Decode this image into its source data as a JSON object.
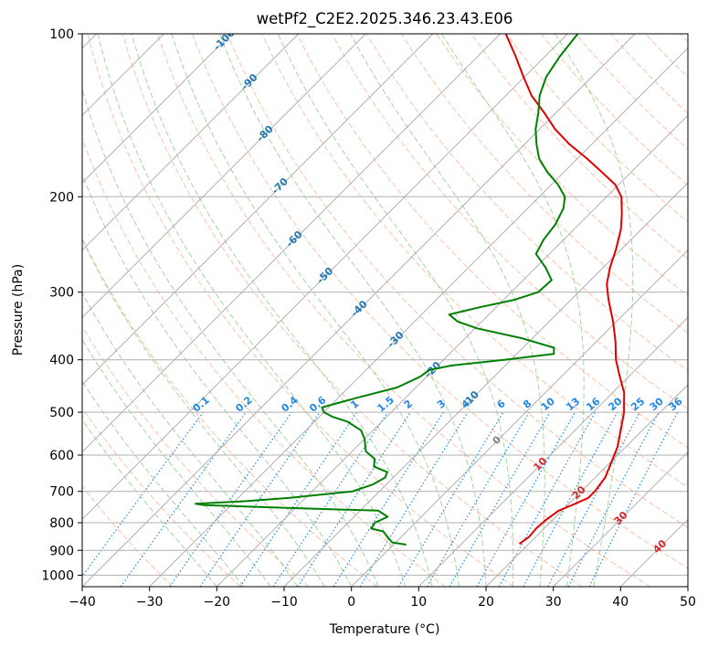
{
  "chart_data": {
    "type": "line",
    "title": "wetPf2_C2E2.2025.346.23.43.E06",
    "xlabel": "Temperature (°C)",
    "ylabel": "Pressure (hPa)",
    "xlim": [
      -40,
      50
    ],
    "ylim": [
      1050,
      100
    ],
    "y_scale": "log",
    "grid": true,
    "x_ticks": [
      -40,
      -30,
      -20,
      -10,
      0,
      10,
      20,
      30,
      40,
      50
    ],
    "y_ticks": [
      100,
      200,
      300,
      400,
      500,
      600,
      700,
      800,
      900,
      1000
    ],
    "colors": {
      "temperature": "#e00000",
      "dewpoint": "#008000",
      "isotherm": "#b0b0b0",
      "dry_adiabat": "#ffb090",
      "moist_adiabat": "#90c890",
      "mixing_ratio": "#1e88e5",
      "isotherm_label_cold": "#1f77b4",
      "isotherm_label_warm": "#d62728",
      "isotherm_label_zero": "#808080"
    },
    "series": [
      {
        "key": "temperature",
        "points": [
          [
            875,
            18.6
          ],
          [
            850,
            19.0
          ],
          [
            820,
            18.8
          ],
          [
            790,
            19.0
          ],
          [
            760,
            19.5
          ],
          [
            740,
            20.8
          ],
          [
            720,
            22.0
          ],
          [
            700,
            22.0
          ],
          [
            660,
            21.5
          ],
          [
            620,
            20.2
          ],
          [
            580,
            18.8
          ],
          [
            540,
            16.8
          ],
          [
            500,
            14.6
          ],
          [
            460,
            11.7
          ],
          [
            430,
            8.7
          ],
          [
            400,
            5.6
          ],
          [
            370,
            2.8
          ],
          [
            340,
            -0.5
          ],
          [
            310,
            -4.4
          ],
          [
            290,
            -7.0
          ],
          [
            270,
            -9.0
          ],
          [
            250,
            -10.8
          ],
          [
            230,
            -13.0
          ],
          [
            215,
            -15.2
          ],
          [
            200,
            -17.8
          ],
          [
            190,
            -20.5
          ],
          [
            180,
            -24.4
          ],
          [
            170,
            -28.6
          ],
          [
            160,
            -33.3
          ],
          [
            150,
            -37.7
          ],
          [
            140,
            -41.7
          ],
          [
            130,
            -46.2
          ],
          [
            120,
            -50.2
          ],
          [
            110,
            -54.4
          ],
          [
            100,
            -59.2
          ]
        ]
      },
      {
        "key": "dewpoint",
        "points": [
          [
            878,
            1.9
          ],
          [
            870,
            -0.5
          ],
          [
            850,
            -2.0
          ],
          [
            830,
            -3.5
          ],
          [
            820,
            -5.7
          ],
          [
            800,
            -6.0
          ],
          [
            780,
            -5.0
          ],
          [
            760,
            -7.3
          ],
          [
            750,
            -23.0
          ],
          [
            742,
            -34.0
          ],
          [
            738,
            -35.5
          ],
          [
            730,
            -28.6
          ],
          [
            720,
            -22.5
          ],
          [
            700,
            -14.0
          ],
          [
            680,
            -12.0
          ],
          [
            660,
            -11.2
          ],
          [
            645,
            -11.7
          ],
          [
            630,
            -14.5
          ],
          [
            610,
            -15.5
          ],
          [
            590,
            -18.0
          ],
          [
            560,
            -20.0
          ],
          [
            540,
            -21.8
          ],
          [
            520,
            -25.2
          ],
          [
            510,
            -28.0
          ],
          [
            500,
            -30.0
          ],
          [
            490,
            -31.0
          ],
          [
            470,
            -27.2
          ],
          [
            450,
            -22.8
          ],
          [
            430,
            -21.0
          ],
          [
            418,
            -20.6
          ],
          [
            410,
            -18.0
          ],
          [
            400,
            -11.0
          ],
          [
            390,
            -4.5
          ],
          [
            380,
            -5.4
          ],
          [
            365,
            -11.6
          ],
          [
            350,
            -19.7
          ],
          [
            340,
            -23.6
          ],
          [
            330,
            -25.9
          ],
          [
            320,
            -22.5
          ],
          [
            310,
            -18.4
          ],
          [
            300,
            -16.0
          ],
          [
            285,
            -15.8
          ],
          [
            270,
            -18.6
          ],
          [
            255,
            -22.0
          ],
          [
            240,
            -23.0
          ],
          [
            225,
            -23.5
          ],
          [
            210,
            -24.7
          ],
          [
            200,
            -26.2
          ],
          [
            190,
            -29.0
          ],
          [
            180,
            -32.5
          ],
          [
            170,
            -35.7
          ],
          [
            160,
            -38.2
          ],
          [
            150,
            -40.6
          ],
          [
            140,
            -42.6
          ],
          [
            130,
            -45.0
          ],
          [
            120,
            -46.8
          ],
          [
            110,
            -47.8
          ],
          [
            100,
            -48.5
          ]
        ]
      }
    ],
    "isotherm_labels": [
      "-100",
      "-90",
      "-80",
      "-70",
      "-60",
      "-50",
      "-40",
      "-30",
      "-20",
      "-10",
      "0",
      "10",
      "20",
      "30",
      "40"
    ],
    "mixing_ratio_labels": [
      "0.1",
      "0.2",
      "0.4",
      "0.6",
      "1",
      "1.5",
      "2",
      "3",
      "4",
      "6",
      "8",
      "10",
      "13",
      "16",
      "20",
      "25",
      "30",
      "36"
    ]
  }
}
